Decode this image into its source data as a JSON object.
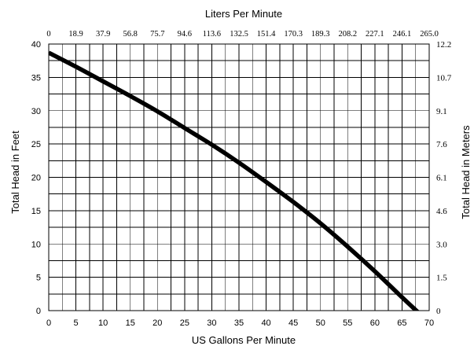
{
  "chart_data": {
    "type": "line",
    "xlabel": "US Gallons Per Minute",
    "x2label": "Liters Per Minute",
    "ylabel": "Total Head in Feet",
    "y2label": "Total Head in Meters",
    "xlim": [
      0,
      70
    ],
    "ylim": [
      0,
      40
    ],
    "x_ticks": [
      0,
      5,
      10,
      15,
      20,
      25,
      30,
      35,
      40,
      45,
      50,
      55,
      60,
      65,
      70
    ],
    "y_ticks": [
      0,
      5,
      10,
      15,
      20,
      25,
      30,
      35,
      40
    ],
    "x2_ticks": [
      "0",
      "18.9",
      "37.9",
      "56.8",
      "75.7",
      "94.6",
      "113.6",
      "132.5",
      "151.4",
      "170.3",
      "189.3",
      "208.2",
      "227.1",
      "246.1",
      "265.0"
    ],
    "y2_ticks": [
      "0",
      "1.5",
      "3.0",
      "4.6",
      "6.1",
      "7.6",
      "9.1",
      "10.7",
      "12.2"
    ],
    "grid": true,
    "x_minor_per_major": 2,
    "y_minor_per_major": 2,
    "line_color": "#000000",
    "series": [
      {
        "x": [
          0,
          5,
          10,
          15,
          20,
          25,
          30,
          35,
          40,
          45,
          50,
          55,
          60,
          65,
          69.6
        ],
        "values": [
          38.7,
          36.6,
          34.4,
          32.2,
          29.9,
          27.4,
          24.9,
          22.2,
          19.3,
          16.3,
          13.1,
          9.6,
          5.9,
          2.0,
          -1.5
        ]
      }
    ]
  }
}
